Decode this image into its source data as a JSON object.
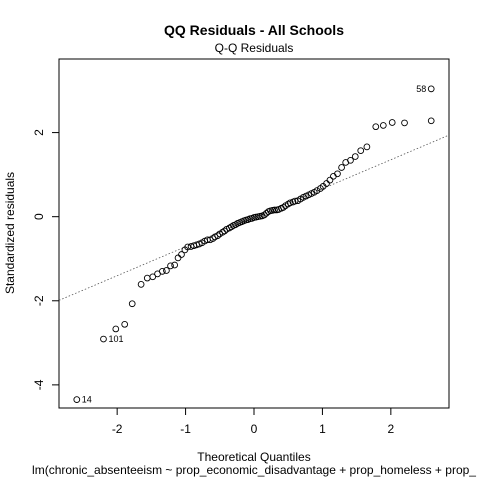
{
  "chart_data": {
    "type": "scatter",
    "title": "QQ Residuals - All Schools",
    "subtitle": "Q-Q Residuals",
    "xlabel": "Theoretical Quantiles",
    "ylabel": "Standardized residuals",
    "caption": "lm(chronic_absenteeism ~ prop_economic_disadvantage + prop_homeless + prop_",
    "xlim": [
      -2.85,
      2.85
    ],
    "ylim": [
      -4.55,
      3.75
    ],
    "xticks": [
      -2,
      -1,
      0,
      1,
      2
    ],
    "yticks": [
      -4,
      -2,
      0,
      2
    ],
    "reference_line": {
      "x": [
        -2.85,
        2.85
      ],
      "y": [
        -1.99,
        1.94
      ]
    },
    "point_labels": [
      {
        "text": "58",
        "x": 2.59,
        "y": 3.04
      },
      {
        "text": "101",
        "x": -2.2,
        "y": -2.91
      },
      {
        "text": "14",
        "x": -2.59,
        "y": -4.35
      }
    ],
    "points": [
      [
        -2.59,
        -4.35
      ],
      [
        -2.2,
        -2.91
      ],
      [
        -2.02,
        -2.67
      ],
      [
        -1.89,
        -2.56
      ],
      [
        -1.78,
        -2.07
      ],
      [
        -1.65,
        -1.61
      ],
      [
        -1.56,
        -1.46
      ],
      [
        -1.48,
        -1.43
      ],
      [
        -1.41,
        -1.36
      ],
      [
        -1.34,
        -1.3
      ],
      [
        -1.28,
        -1.28
      ],
      [
        -1.22,
        -1.17
      ],
      [
        -1.16,
        -1.15
      ],
      [
        -1.11,
        -0.98
      ],
      [
        -1.06,
        -0.9
      ],
      [
        -1.01,
        -0.79
      ],
      [
        -0.97,
        -0.72
      ],
      [
        -0.92,
        -0.71
      ],
      [
        -0.88,
        -0.69
      ],
      [
        -0.84,
        -0.67
      ],
      [
        -0.8,
        -0.65
      ],
      [
        -0.76,
        -0.62
      ],
      [
        -0.72,
        -0.58
      ],
      [
        -0.68,
        -0.55
      ],
      [
        -0.64,
        -0.55
      ],
      [
        -0.6,
        -0.52
      ],
      [
        -0.57,
        -0.48
      ],
      [
        -0.53,
        -0.45
      ],
      [
        -0.5,
        -0.41
      ],
      [
        -0.46,
        -0.37
      ],
      [
        -0.43,
        -0.34
      ],
      [
        -0.4,
        -0.3
      ],
      [
        -0.36,
        -0.27
      ],
      [
        -0.33,
        -0.24
      ],
      [
        -0.3,
        -0.21
      ],
      [
        -0.27,
        -0.19
      ],
      [
        -0.24,
        -0.16
      ],
      [
        -0.21,
        -0.14
      ],
      [
        -0.18,
        -0.12
      ],
      [
        -0.15,
        -0.1
      ],
      [
        -0.12,
        -0.08
      ],
      [
        -0.09,
        -0.07
      ],
      [
        -0.06,
        -0.05
      ],
      [
        -0.03,
        -0.04
      ],
      [
        0.0,
        -0.02
      ],
      [
        0.03,
        -0.01
      ],
      [
        0.06,
        0.0
      ],
      [
        0.09,
        0.01
      ],
      [
        0.12,
        0.02
      ],
      [
        0.15,
        0.04
      ],
      [
        0.18,
        0.08
      ],
      [
        0.21,
        0.12
      ],
      [
        0.24,
        0.14
      ],
      [
        0.27,
        0.15
      ],
      [
        0.3,
        0.16
      ],
      [
        0.33,
        0.16
      ],
      [
        0.36,
        0.17
      ],
      [
        0.4,
        0.2
      ],
      [
        0.43,
        0.22
      ],
      [
        0.46,
        0.26
      ],
      [
        0.5,
        0.3
      ],
      [
        0.53,
        0.33
      ],
      [
        0.57,
        0.35
      ],
      [
        0.6,
        0.37
      ],
      [
        0.64,
        0.38
      ],
      [
        0.68,
        0.42
      ],
      [
        0.72,
        0.46
      ],
      [
        0.76,
        0.49
      ],
      [
        0.8,
        0.52
      ],
      [
        0.84,
        0.55
      ],
      [
        0.88,
        0.58
      ],
      [
        0.92,
        0.62
      ],
      [
        0.97,
        0.67
      ],
      [
        1.01,
        0.72
      ],
      [
        1.06,
        0.79
      ],
      [
        1.11,
        0.87
      ],
      [
        1.16,
        0.96
      ],
      [
        1.22,
        1.02
      ],
      [
        1.28,
        1.17
      ],
      [
        1.34,
        1.29
      ],
      [
        1.41,
        1.34
      ],
      [
        1.48,
        1.43
      ],
      [
        1.56,
        1.57
      ],
      [
        1.65,
        1.66
      ],
      [
        1.78,
        2.14
      ],
      [
        1.89,
        2.17
      ],
      [
        2.02,
        2.24
      ],
      [
        2.2,
        2.23
      ],
      [
        2.59,
        2.28
      ],
      [
        2.59,
        3.04
      ]
    ]
  }
}
